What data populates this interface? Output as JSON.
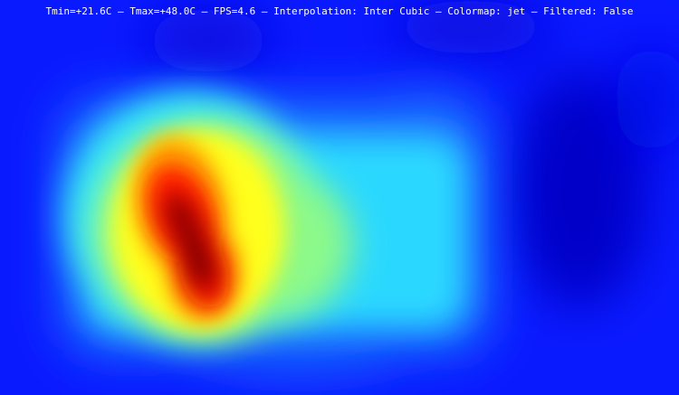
{
  "overlay": {
    "status_text": "Tmin=+21.6C — Tmax=+48.0C — FPS=4.6 — Interpolation: Inter Cubic — Colormap: jet — Filtered: False",
    "tmin": "+21.6C",
    "tmax": "+48.0C",
    "fps": "4.6",
    "interpolation": "Inter Cubic",
    "colormap": "jet",
    "filtered": "False"
  },
  "colors": {
    "background": "#0a1aff",
    "text": "#ffffff"
  }
}
